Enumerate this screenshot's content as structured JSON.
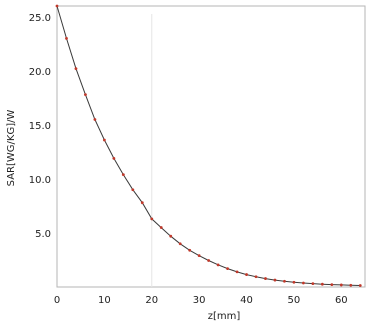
{
  "chart_data": {
    "type": "line",
    "title": "",
    "xlabel": "z[mm]",
    "ylabel": "SAR[WG/KG]/W",
    "xlim": [
      0,
      65
    ],
    "ylim": [
      0,
      26
    ],
    "x_ticks": [
      0,
      10,
      20,
      30,
      40,
      50,
      60
    ],
    "y_ticks": [
      5.0,
      10.0,
      15.0,
      20.0,
      25.0
    ],
    "x_tick_labels": [
      "0",
      "10",
      "20",
      "30",
      "40",
      "50",
      "60"
    ],
    "y_tick_labels": [
      "5.0",
      "10.0",
      "15.0",
      "20.0",
      "25.0"
    ],
    "grid": false,
    "marker_line_x": 20,
    "series": [
      {
        "color": "#c0392b",
        "x": [
          0,
          2,
          4,
          6,
          8,
          10,
          12,
          14,
          16,
          18,
          20,
          22,
          24,
          26,
          28,
          30,
          32,
          34,
          36,
          38,
          40,
          42,
          44,
          46,
          48,
          50,
          52,
          54,
          56,
          58,
          60,
          62,
          64
        ],
        "y": [
          26.0,
          23.0,
          20.2,
          17.8,
          15.5,
          13.6,
          11.9,
          10.4,
          9.0,
          7.8,
          6.3,
          5.5,
          4.7,
          4.0,
          3.4,
          2.9,
          2.45,
          2.05,
          1.7,
          1.4,
          1.15,
          0.95,
          0.78,
          0.64,
          0.53,
          0.44,
          0.37,
          0.31,
          0.26,
          0.22,
          0.19,
          0.16,
          0.14
        ]
      }
    ]
  }
}
